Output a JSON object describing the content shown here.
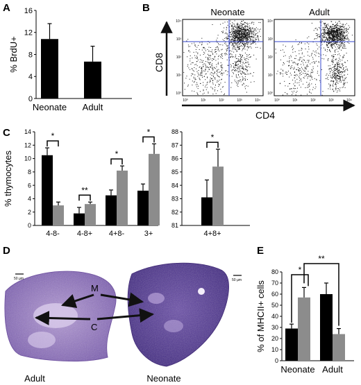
{
  "panels": {
    "a": "A",
    "b": "B",
    "c": "C",
    "d": "D",
    "e": "E"
  },
  "colors": {
    "black_bar": "#000000",
    "gray_bar": "#8c8c8c",
    "gate_line": "#3344cc",
    "tissue_dark": "#4a2f8a",
    "tissue_light": "#c9b6e0"
  },
  "flow": {
    "panel_titles": [
      "Neonate",
      "Adult"
    ],
    "y_label": "CD8",
    "x_label": "CD4",
    "tick_labels": [
      "10⁰",
      "10¹",
      "10²",
      "10³",
      "10⁴"
    ]
  },
  "histology": {
    "left_label": "Adult",
    "right_label": "Neonate",
    "scale_left": "50 µm",
    "scale_right": "50 µm",
    "marker_m": "M",
    "marker_c": "C"
  },
  "chart_data": [
    {
      "type": "bar",
      "panel": "A",
      "ylabel": "% BrdU+",
      "categories": [
        "Neonate",
        "Adult"
      ],
      "values": [
        10.8,
        6.7
      ],
      "errors": [
        2.8,
        2.8
      ],
      "ylim": [
        0,
        16
      ],
      "yticks": [
        0,
        4,
        8,
        12,
        16
      ]
    },
    {
      "type": "bar",
      "panel": "C",
      "ylabel": "% thymocytes",
      "categories": [
        "4-8-",
        "4-8+",
        "4+8-",
        "3+"
      ],
      "series": [
        {
          "values": [
            10.5,
            1.8,
            4.5,
            5.2
          ],
          "errors": [
            1.1,
            0.9,
            0.8,
            1.0
          ]
        },
        {
          "values": [
            3.0,
            3.2,
            8.2,
            10.7
          ],
          "errors": [
            0.5,
            0.3,
            0.7,
            1.5
          ]
        }
      ],
      "significance": [
        "*",
        "**",
        "*",
        "*"
      ],
      "ylim": [
        0,
        14
      ],
      "yticks": [
        0,
        2,
        4,
        6,
        8,
        10,
        12,
        14
      ]
    },
    {
      "type": "bar",
      "panel": "C",
      "categories": [
        "4+8+"
      ],
      "series": [
        {
          "values": [
            83.1
          ],
          "errors": [
            1.3
          ]
        },
        {
          "values": [
            85.4
          ],
          "errors": [
            1.3
          ]
        }
      ],
      "significance": [
        "*"
      ],
      "ylim": [
        81,
        88
      ],
      "yticks": [
        81,
        82,
        83,
        84,
        85,
        86,
        87,
        88
      ]
    },
    {
      "type": "bar",
      "panel": "E",
      "ylabel": "% of MHCII+ cells",
      "categories": [
        "Neonate",
        "Adult"
      ],
      "series": [
        {
          "values": [
            29,
            60
          ],
          "errors": [
            4,
            10
          ]
        },
        {
          "values": [
            57,
            24
          ],
          "errors": [
            9,
            5
          ]
        }
      ],
      "significance": [
        "*",
        "**"
      ],
      "ylim": [
        0,
        80
      ],
      "yticks": [
        0,
        10,
        20,
        30,
        40,
        50,
        60,
        70,
        80
      ]
    }
  ]
}
